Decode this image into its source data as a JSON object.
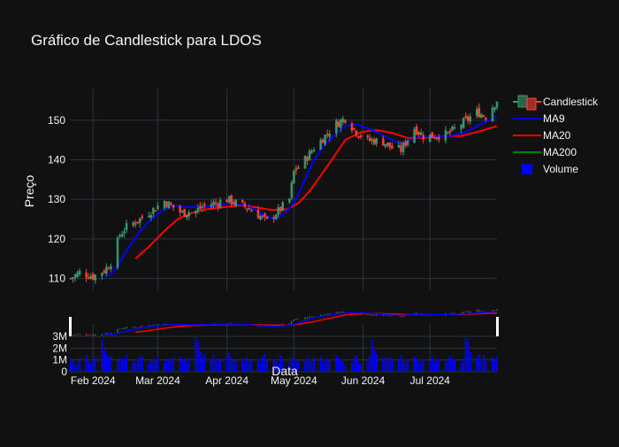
{
  "chart_data": {
    "type": "candlestick",
    "title": "Gráfico de Candlestick para LDOS",
    "ylabel": "Preço",
    "xlabel": "Data",
    "ylim": [
      107,
      158
    ],
    "y_ticks": [
      110,
      120,
      130,
      140,
      150
    ],
    "x_ticks": [
      {
        "date": "2024-02-01",
        "label": "Feb 2024"
      },
      {
        "date": "2024-03-01",
        "label": "Mar 2024"
      },
      {
        "date": "2024-04-01",
        "label": "Apr 2024"
      },
      {
        "date": "2024-05-01",
        "label": "May 2024"
      },
      {
        "date": "2024-06-01",
        "label": "Jun 2024"
      },
      {
        "date": "2024-07-01",
        "label": "Jul 2024"
      }
    ],
    "date_range": [
      "2024-01-22",
      "2024-07-31"
    ],
    "volume_ylim": [
      0,
      3.6
    ],
    "volume_ticks": [
      {
        "value": 0,
        "label": "0"
      },
      {
        "value": 1,
        "label": "1M"
      },
      {
        "value": 2,
        "label": "2M"
      },
      {
        "value": 3,
        "label": "3M"
      }
    ],
    "colors": {
      "up": "#3d9970",
      "down": "#ff4136",
      "ma9": "#0000ff",
      "ma20": "#ff0000",
      "ma200": "#008000",
      "volume": "#0000ff"
    },
    "legend": {
      "position": "right",
      "entries": [
        {
          "name": "Candlestick",
          "key": "candle"
        },
        {
          "name": "MA9",
          "key": "ma9"
        },
        {
          "name": "MA20",
          "key": "ma20"
        },
        {
          "name": "MA200",
          "key": "ma200"
        },
        {
          "name": "Volume",
          "key": "volume"
        }
      ]
    },
    "close_series": [
      [
        "2024-01-22",
        110
      ],
      [
        "2024-01-26",
        111.5
      ],
      [
        "2024-02-01",
        110.5
      ],
      [
        "2024-02-06",
        112
      ],
      [
        "2024-02-09",
        114
      ],
      [
        "2024-02-13",
        121
      ],
      [
        "2024-02-16",
        123
      ],
      [
        "2024-02-22",
        125
      ],
      [
        "2024-02-27",
        127
      ],
      [
        "2024-03-04",
        129.5
      ],
      [
        "2024-03-08",
        128
      ],
      [
        "2024-03-12",
        126.5
      ],
      [
        "2024-03-18",
        127
      ],
      [
        "2024-03-22",
        128.5
      ],
      [
        "2024-03-27",
        129
      ],
      [
        "2024-04-01",
        130
      ],
      [
        "2024-04-05",
        129
      ],
      [
        "2024-04-10",
        128
      ],
      [
        "2024-04-15",
        126
      ],
      [
        "2024-04-19",
        124.5
      ],
      [
        "2024-04-24",
        127
      ],
      [
        "2024-04-29",
        130
      ],
      [
        "2024-05-01",
        137
      ],
      [
        "2024-05-06",
        140
      ],
      [
        "2024-05-10",
        143
      ],
      [
        "2024-05-15",
        146
      ],
      [
        "2024-05-20",
        149
      ],
      [
        "2024-05-24",
        150.5
      ],
      [
        "2024-05-29",
        147
      ],
      [
        "2024-06-03",
        145
      ],
      [
        "2024-06-10",
        144.5
      ],
      [
        "2024-06-14",
        143
      ],
      [
        "2024-06-18",
        142.5
      ],
      [
        "2024-06-24",
        148
      ],
      [
        "2024-06-28",
        146
      ],
      [
        "2024-07-03",
        146
      ],
      [
        "2024-07-09",
        146.5
      ],
      [
        "2024-07-15",
        149
      ],
      [
        "2024-07-22",
        152
      ],
      [
        "2024-07-26",
        151
      ],
      [
        "2024-07-31",
        155
      ]
    ],
    "ma9": [
      [
        "2024-02-06",
        110.5
      ],
      [
        "2024-02-09",
        111
      ],
      [
        "2024-02-13",
        114
      ],
      [
        "2024-02-16",
        117
      ],
      [
        "2024-02-22",
        122
      ],
      [
        "2024-02-27",
        125
      ],
      [
        "2024-03-04",
        127.5
      ],
      [
        "2024-03-08",
        128.5
      ],
      [
        "2024-03-14",
        128
      ],
      [
        "2024-03-20",
        128
      ],
      [
        "2024-03-27",
        128.5
      ],
      [
        "2024-04-03",
        129
      ],
      [
        "2024-04-10",
        128.5
      ],
      [
        "2024-04-16",
        126.5
      ],
      [
        "2024-04-22",
        125
      ],
      [
        "2024-04-26",
        126
      ],
      [
        "2024-05-01",
        129
      ],
      [
        "2024-05-06",
        135
      ],
      [
        "2024-05-10",
        140
      ],
      [
        "2024-05-15",
        144
      ],
      [
        "2024-05-20",
        146.5
      ],
      [
        "2024-05-24",
        148.5
      ],
      [
        "2024-05-29",
        149
      ],
      [
        "2024-06-05",
        147.5
      ],
      [
        "2024-06-12",
        145.5
      ],
      [
        "2024-06-18",
        144
      ],
      [
        "2024-06-24",
        145.5
      ],
      [
        "2024-07-02",
        146
      ],
      [
        "2024-07-10",
        146
      ],
      [
        "2024-07-17",
        147
      ],
      [
        "2024-07-24",
        149
      ],
      [
        "2024-07-31",
        151
      ]
    ],
    "ma20": [
      [
        "2024-02-20",
        115
      ],
      [
        "2024-02-26",
        118
      ],
      [
        "2024-03-04",
        122
      ],
      [
        "2024-03-10",
        125
      ],
      [
        "2024-03-16",
        126.5
      ],
      [
        "2024-03-23",
        127.5
      ],
      [
        "2024-03-30",
        128
      ],
      [
        "2024-04-07",
        128.5
      ],
      [
        "2024-04-14",
        128
      ],
      [
        "2024-04-21",
        127.3
      ],
      [
        "2024-04-28",
        127.5
      ],
      [
        "2024-05-03",
        129
      ],
      [
        "2024-05-08",
        132
      ],
      [
        "2024-05-13",
        136
      ],
      [
        "2024-05-18",
        140
      ],
      [
        "2024-05-24",
        145
      ],
      [
        "2024-05-31",
        147
      ],
      [
        "2024-06-07",
        147.5
      ],
      [
        "2024-06-14",
        146.8
      ],
      [
        "2024-06-21",
        145.5
      ],
      [
        "2024-06-28",
        145.5
      ],
      [
        "2024-07-06",
        146
      ],
      [
        "2024-07-15",
        146
      ],
      [
        "2024-07-22",
        147
      ],
      [
        "2024-07-31",
        148.5
      ]
    ],
    "ma200": [],
    "volume": [
      1.1,
      0.9,
      0.6,
      0.8,
      1.2,
      1.4,
      0.8,
      0.7,
      1.0,
      1.3,
      2.7,
      1.9,
      1.5,
      1.2,
      1.3,
      0.9,
      1.2,
      1.1,
      1.0,
      1.4,
      0.9,
      0.8,
      1.1,
      1.3,
      1.2,
      0.7,
      0.9,
      1.1,
      1.0,
      1.3,
      0.8,
      1.0,
      1.1,
      0.9,
      1.2,
      1.3,
      1.0,
      1.1,
      0.8,
      1.2,
      2.9,
      2.6,
      1.7,
      1.2,
      1.5,
      1.1,
      1.4,
      0.9,
      1.2,
      1.0,
      1.3,
      1.6,
      1.2,
      0.9,
      1.0,
      1.1,
      0.8,
      1.2,
      0.9,
      1.0,
      1.1,
      0.8,
      1.3,
      1.5,
      1.0,
      1.1,
      0.9,
      0.7,
      1.4,
      1.0,
      0.9,
      1.2,
      1.1,
      0.8,
      1.0,
      0.9,
      1.3,
      1.1,
      0.9,
      1.2,
      1.3,
      0.8,
      1.0,
      1.1,
      1.0,
      1.4,
      1.2
    ]
  }
}
